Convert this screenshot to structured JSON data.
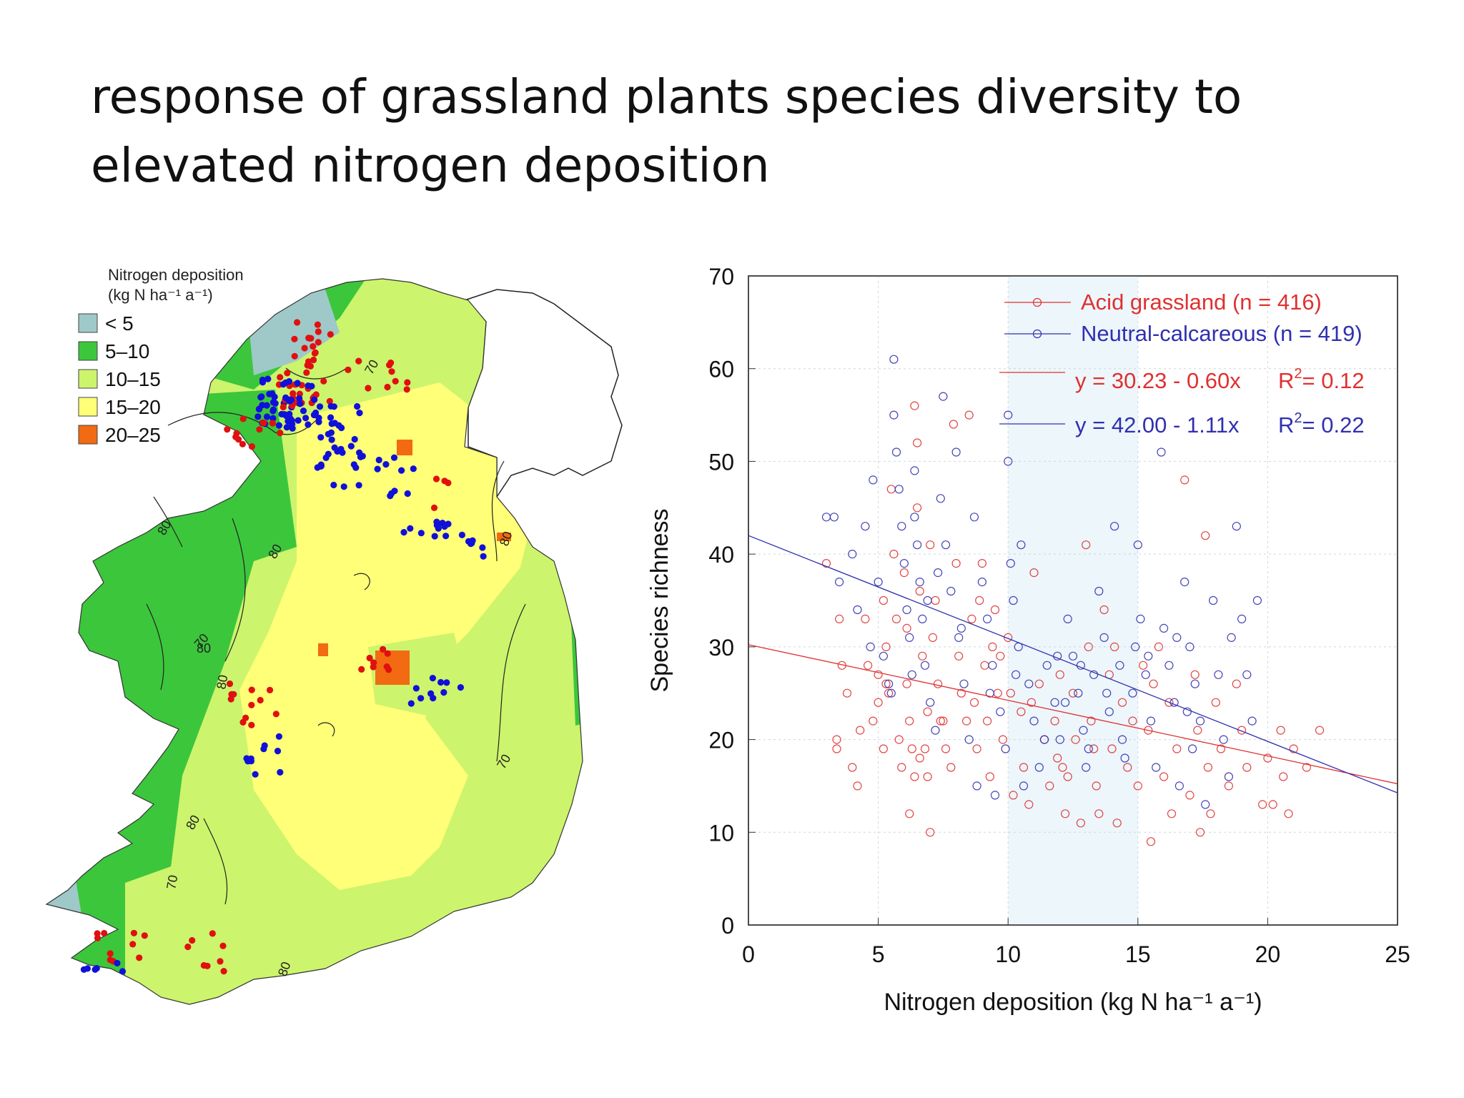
{
  "slide": {
    "title_line1": "response of grassland plants species diversity to",
    "title_line2": "elevated nitrogen deposition"
  },
  "map": {
    "legend_title_line1": "Nitrogen deposition",
    "legend_title_line2": "(kg N ha⁻¹ a⁻¹)",
    "legend": [
      {
        "label": "< 5",
        "color": "#9ec9c8"
      },
      {
        "label": "5–10",
        "color": "#3cc63c"
      },
      {
        "label": "10–15",
        "color": "#ccf46c"
      },
      {
        "label": "15–20",
        "color": "#ffff78"
      },
      {
        "label": "20–25",
        "color": "#f26a12"
      }
    ],
    "contour_labels": [
      "70",
      "80",
      "80",
      "70",
      "80",
      "80",
      "70",
      "80",
      "80",
      "70",
      "80"
    ],
    "site_colors": {
      "acid": "#e01010",
      "neutral": "#1010d8"
    }
  },
  "chart_data": {
    "type": "scatter",
    "xlabel": "Nitrogen deposition (kg N ha⁻¹ a⁻¹)",
    "ylabel": "Species richness",
    "xlim": [
      0,
      25
    ],
    "ylim": [
      0,
      70
    ],
    "xticks": [
      0,
      5,
      10,
      15,
      20,
      25
    ],
    "yticks": [
      0,
      10,
      20,
      30,
      40,
      50,
      60,
      70
    ],
    "grid": true,
    "shaded_x_range": [
      10,
      15
    ],
    "legend_position": "top-right",
    "series": [
      {
        "name": "Acid grassland (n = 416)",
        "color": "#e03030",
        "fit": {
          "label": "y = 30.23 - 0.60x",
          "r2_label": "R",
          "r2_sup": "2",
          "r2_value": "= 0.12",
          "intercept": 30.23,
          "slope": -0.6
        },
        "points": [
          [
            3.0,
            39
          ],
          [
            3.5,
            33
          ],
          [
            3.6,
            28
          ],
          [
            3.8,
            25
          ],
          [
            3.4,
            19
          ],
          [
            3.4,
            20
          ],
          [
            4.0,
            17
          ],
          [
            4.2,
            15
          ],
          [
            4.5,
            33
          ],
          [
            4.6,
            28
          ],
          [
            4.8,
            22
          ],
          [
            5.0,
            27
          ],
          [
            5.0,
            24
          ],
          [
            5.2,
            35
          ],
          [
            5.3,
            30
          ],
          [
            5.2,
            19
          ],
          [
            5.4,
            25
          ],
          [
            5.6,
            40
          ],
          [
            5.5,
            47
          ],
          [
            5.8,
            20
          ],
          [
            5.9,
            17
          ],
          [
            6.0,
            38
          ],
          [
            6.1,
            32
          ],
          [
            6.1,
            26
          ],
          [
            6.2,
            22
          ],
          [
            6.3,
            19
          ],
          [
            6.4,
            16
          ],
          [
            6.2,
            12
          ],
          [
            6.5,
            45
          ],
          [
            6.4,
            56
          ],
          [
            6.5,
            52
          ],
          [
            6.6,
            36
          ],
          [
            6.7,
            29
          ],
          [
            6.8,
            19
          ],
          [
            6.9,
            16
          ],
          [
            7.0,
            10
          ],
          [
            7.0,
            41
          ],
          [
            7.2,
            35
          ],
          [
            7.3,
            26
          ],
          [
            7.5,
            22
          ],
          [
            7.6,
            19
          ],
          [
            7.8,
            17
          ],
          [
            7.9,
            54
          ],
          [
            8.0,
            39
          ],
          [
            8.1,
            29
          ],
          [
            8.2,
            25
          ],
          [
            8.4,
            22
          ],
          [
            8.5,
            55
          ],
          [
            8.6,
            33
          ],
          [
            8.7,
            24
          ],
          [
            8.8,
            19
          ],
          [
            9.0,
            39
          ],
          [
            9.1,
            28
          ],
          [
            9.2,
            22
          ],
          [
            9.3,
            16
          ],
          [
            9.5,
            34
          ],
          [
            9.6,
            25
          ],
          [
            9.8,
            20
          ],
          [
            10.0,
            31
          ],
          [
            10.1,
            25
          ],
          [
            10.2,
            14
          ],
          [
            10.5,
            23
          ],
          [
            10.6,
            17
          ],
          [
            10.8,
            13
          ],
          [
            11.0,
            38
          ],
          [
            11.2,
            26
          ],
          [
            11.4,
            20
          ],
          [
            11.6,
            15
          ],
          [
            11.8,
            22
          ],
          [
            12.0,
            27
          ],
          [
            12.1,
            17
          ],
          [
            12.2,
            12
          ],
          [
            12.5,
            25
          ],
          [
            12.6,
            20
          ],
          [
            12.8,
            11
          ],
          [
            13.0,
            41
          ],
          [
            13.1,
            30
          ],
          [
            13.2,
            22
          ],
          [
            13.4,
            15
          ],
          [
            13.5,
            12
          ],
          [
            13.7,
            34
          ],
          [
            13.9,
            27
          ],
          [
            14.0,
            19
          ],
          [
            14.2,
            11
          ],
          [
            14.4,
            24
          ],
          [
            14.6,
            17
          ],
          [
            14.8,
            22
          ],
          [
            15.0,
            15
          ],
          [
            15.2,
            28
          ],
          [
            15.4,
            21
          ],
          [
            15.5,
            9
          ],
          [
            15.8,
            30
          ],
          [
            16.0,
            16
          ],
          [
            16.2,
            24
          ],
          [
            16.5,
            19
          ],
          [
            16.8,
            48
          ],
          [
            17.0,
            14
          ],
          [
            17.2,
            27
          ],
          [
            17.4,
            10
          ],
          [
            17.6,
            42
          ],
          [
            17.7,
            17
          ],
          [
            17.8,
            12
          ],
          [
            18.0,
            24
          ],
          [
            18.2,
            19
          ],
          [
            18.5,
            15
          ],
          [
            18.8,
            26
          ],
          [
            19.0,
            21
          ],
          [
            19.2,
            17
          ],
          [
            20.0,
            18
          ],
          [
            20.2,
            13
          ],
          [
            20.5,
            21
          ],
          [
            20.6,
            16
          ],
          [
            21.0,
            19
          ],
          [
            21.5,
            17
          ],
          [
            22.0,
            21
          ],
          [
            7.4,
            22
          ],
          [
            8.9,
            35
          ],
          [
            9.7,
            29
          ],
          [
            12.3,
            16
          ],
          [
            14.1,
            30
          ],
          [
            16.3,
            12
          ],
          [
            17.3,
            21
          ],
          [
            5.7,
            33
          ],
          [
            6.6,
            18
          ],
          [
            4.3,
            21
          ],
          [
            19.8,
            13
          ],
          [
            20.8,
            12
          ],
          [
            15.6,
            26
          ],
          [
            11.9,
            18
          ],
          [
            10.9,
            24
          ],
          [
            13.3,
            19
          ],
          [
            9.4,
            30
          ],
          [
            7.1,
            31
          ],
          [
            5.3,
            26
          ],
          [
            6.9,
            23
          ]
        ]
      },
      {
        "name": "Neutral-calcareous (n = 419)",
        "color": "#3030b0",
        "fit": {
          "label": "y = 42.00 - 1.11x",
          "r2_label": "R",
          "r2_sup": "2",
          "r2_value": "= 0.22",
          "intercept": 42.0,
          "slope": -1.11
        },
        "points": [
          [
            3.0,
            44
          ],
          [
            3.3,
            44
          ],
          [
            3.5,
            37
          ],
          [
            4.0,
            40
          ],
          [
            4.2,
            34
          ],
          [
            4.5,
            43
          ],
          [
            4.8,
            48
          ],
          [
            5.0,
            37
          ],
          [
            5.2,
            29
          ],
          [
            5.4,
            26
          ],
          [
            5.6,
            61
          ],
          [
            5.6,
            55
          ],
          [
            5.7,
            51
          ],
          [
            5.8,
            47
          ],
          [
            5.9,
            43
          ],
          [
            6.0,
            39
          ],
          [
            6.1,
            34
          ],
          [
            6.2,
            31
          ],
          [
            6.3,
            27
          ],
          [
            6.4,
            49
          ],
          [
            6.4,
            44
          ],
          [
            6.5,
            41
          ],
          [
            6.6,
            37
          ],
          [
            6.7,
            33
          ],
          [
            6.8,
            28
          ],
          [
            7.0,
            24
          ],
          [
            7.2,
            21
          ],
          [
            7.4,
            46
          ],
          [
            7.5,
            57
          ],
          [
            7.6,
            41
          ],
          [
            7.8,
            36
          ],
          [
            8.0,
            51
          ],
          [
            8.1,
            31
          ],
          [
            8.3,
            26
          ],
          [
            8.5,
            20
          ],
          [
            8.7,
            44
          ],
          [
            8.8,
            15
          ],
          [
            9.0,
            37
          ],
          [
            9.2,
            33
          ],
          [
            9.4,
            28
          ],
          [
            9.5,
            14
          ],
          [
            9.7,
            23
          ],
          [
            9.9,
            19
          ],
          [
            10.0,
            55
          ],
          [
            10.0,
            50
          ],
          [
            10.1,
            39
          ],
          [
            10.2,
            35
          ],
          [
            10.4,
            30
          ],
          [
            10.5,
            41
          ],
          [
            10.8,
            26
          ],
          [
            11.0,
            22
          ],
          [
            11.2,
            17
          ],
          [
            11.5,
            28
          ],
          [
            11.8,
            24
          ],
          [
            12.0,
            20
          ],
          [
            12.3,
            33
          ],
          [
            12.5,
            29
          ],
          [
            12.7,
            25
          ],
          [
            12.9,
            21
          ],
          [
            13.1,
            19
          ],
          [
            13.3,
            27
          ],
          [
            13.5,
            36
          ],
          [
            13.7,
            31
          ],
          [
            13.9,
            23
          ],
          [
            14.1,
            43
          ],
          [
            14.3,
            28
          ],
          [
            14.5,
            18
          ],
          [
            14.8,
            25
          ],
          [
            15.0,
            41
          ],
          [
            15.1,
            33
          ],
          [
            15.3,
            27
          ],
          [
            15.5,
            22
          ],
          [
            15.7,
            17
          ],
          [
            15.9,
            51
          ],
          [
            16.0,
            32
          ],
          [
            16.2,
            28
          ],
          [
            16.4,
            24
          ],
          [
            16.6,
            15
          ],
          [
            16.8,
            37
          ],
          [
            17.0,
            30
          ],
          [
            17.2,
            26
          ],
          [
            17.4,
            22
          ],
          [
            17.6,
            13
          ],
          [
            17.9,
            35
          ],
          [
            18.1,
            27
          ],
          [
            18.3,
            20
          ],
          [
            18.5,
            16
          ],
          [
            18.8,
            43
          ],
          [
            19.0,
            33
          ],
          [
            19.2,
            27
          ],
          [
            19.4,
            22
          ],
          [
            19.6,
            35
          ],
          [
            12.2,
            24
          ],
          [
            13.0,
            17
          ],
          [
            11.4,
            20
          ],
          [
            14.9,
            30
          ],
          [
            16.5,
            31
          ],
          [
            10.6,
            15
          ],
          [
            9.3,
            25
          ],
          [
            8.2,
            32
          ],
          [
            7.3,
            38
          ],
          [
            6.9,
            35
          ],
          [
            5.5,
            25
          ],
          [
            4.7,
            30
          ],
          [
            13.8,
            25
          ],
          [
            12.8,
            28
          ],
          [
            11.9,
            29
          ],
          [
            15.4,
            29
          ],
          [
            17.1,
            19
          ],
          [
            18.6,
            31
          ],
          [
            16.9,
            23
          ],
          [
            14.4,
            20
          ],
          [
            10.3,
            27
          ]
        ]
      }
    ]
  }
}
